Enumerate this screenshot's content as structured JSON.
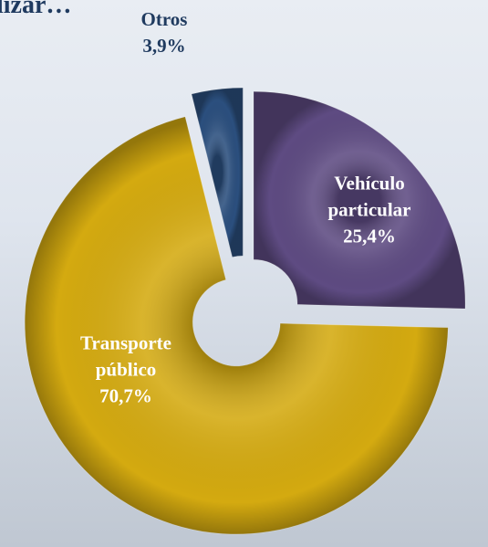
{
  "chart_data": {
    "type": "donut",
    "title": "lizar…",
    "categories": [
      "Vehículo particular",
      "Transporte público",
      "Otros"
    ],
    "values": [
      25.4,
      70.7,
      3.9
    ],
    "value_labels": [
      "25,4%",
      "70,7%",
      "3,9%"
    ],
    "colors": [
      "#5e4b82",
      "#d4aa10",
      "#2b4f7e"
    ]
  }
}
